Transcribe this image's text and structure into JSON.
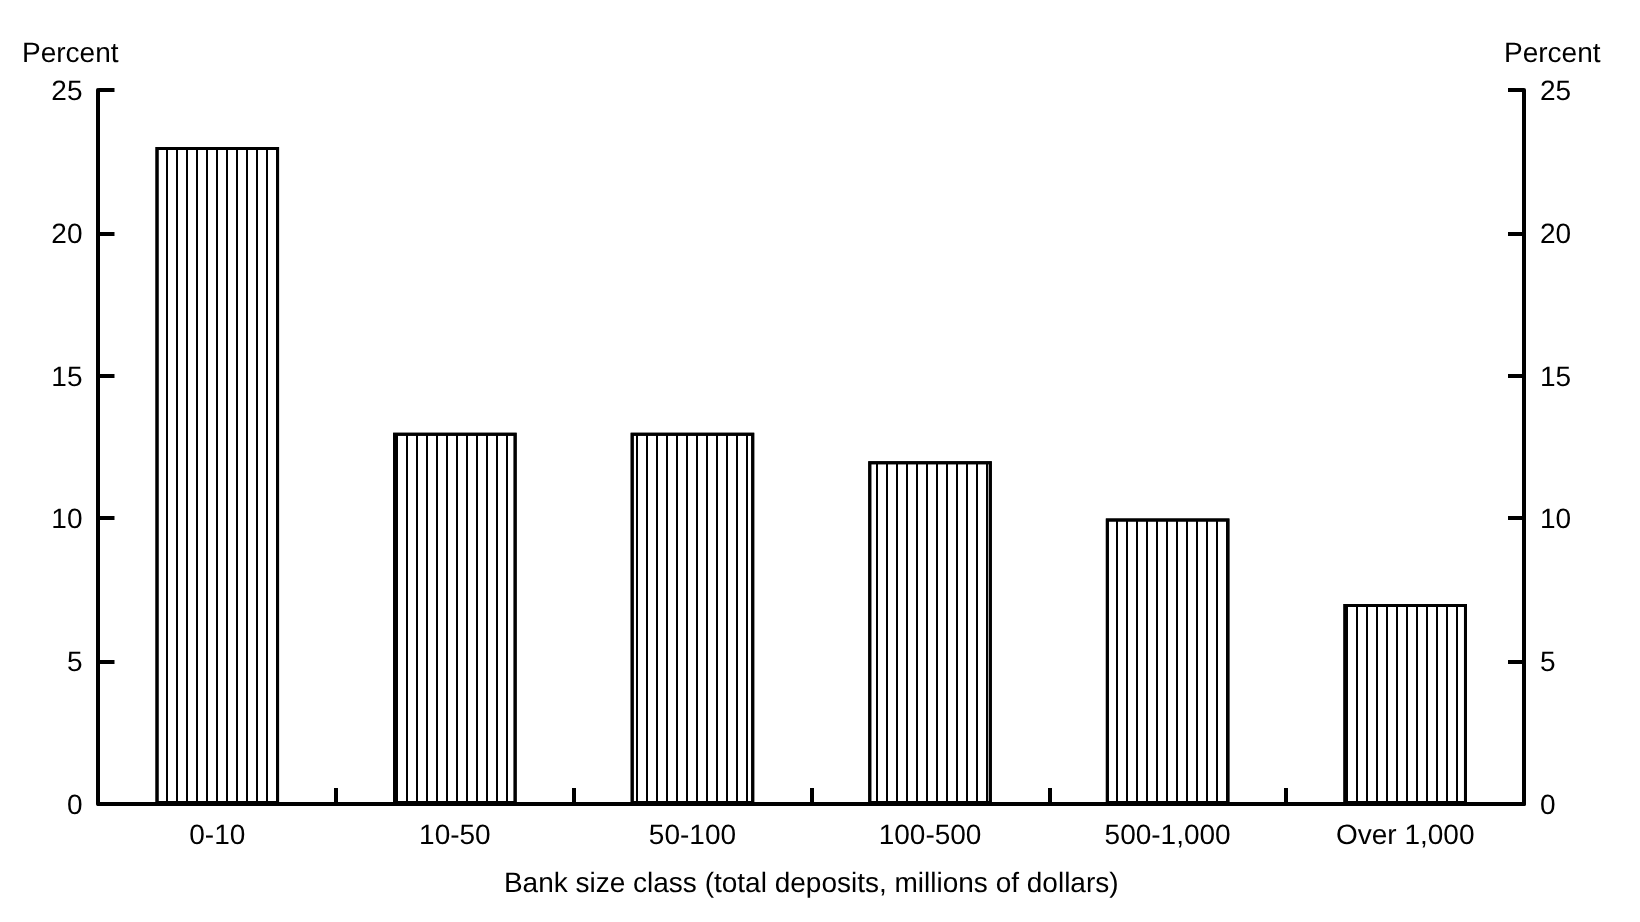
{
  "chart_data": {
    "type": "bar",
    "xlabel": "Bank size class (total deposits, millions of dollars)",
    "ylabel": "Percent",
    "y2label": "Percent",
    "categories": [
      "0-10",
      "10-50",
      "50-100",
      "100-500",
      "500-1,000",
      "Over 1,000"
    ],
    "values": [
      23,
      13,
      13,
      12,
      10,
      7
    ],
    "color": "#000000",
    "ylim": [
      0,
      25
    ],
    "yticks": [
      0,
      5,
      10,
      15,
      20,
      25
    ],
    "y2lim": [
      0,
      25
    ],
    "y2ticks": [
      0,
      5,
      10,
      15,
      20,
      25
    ],
    "grid": false
  }
}
